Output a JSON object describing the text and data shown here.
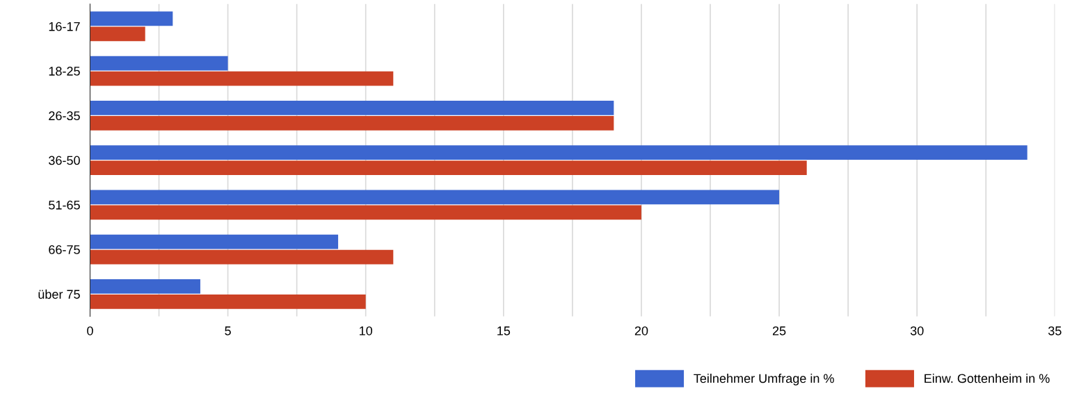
{
  "chart_data": {
    "type": "bar",
    "orientation": "horizontal",
    "categories": [
      "16-17",
      "18-25",
      "26-35",
      "36-50",
      "51-65",
      "66-75",
      "über 75"
    ],
    "series": [
      {
        "name": "Teilnehmer Umfrage in %",
        "color": "#3c66cf",
        "values": [
          3,
          5,
          19,
          34,
          25,
          9,
          4
        ]
      },
      {
        "name": "Einw. Gottenheim in %",
        "color": "#cc4125",
        "values": [
          2,
          11,
          19,
          26,
          20,
          11,
          10
        ]
      }
    ],
    "xlim": [
      0,
      35
    ],
    "xticks": [
      0,
      {
        "value": 2.5,
        "label": null
      },
      5,
      {
        "value": 7.5,
        "label": null
      },
      10,
      {
        "value": 12.5,
        "label": null
      },
      15,
      {
        "value": 17.5,
        "label": null
      },
      20,
      {
        "value": 22.5,
        "label": null
      },
      25,
      {
        "value": 27.5,
        "label": null
      },
      30,
      {
        "value": 32.5,
        "label": null
      },
      35
    ],
    "grid": "x",
    "legend": "bottom right"
  }
}
